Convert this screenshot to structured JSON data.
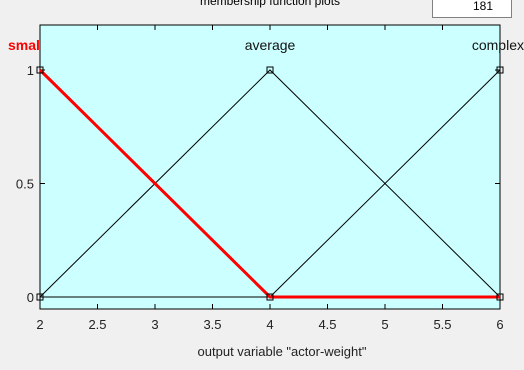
{
  "header": {
    "plot_title": "membership function plots",
    "plot_points": "181"
  },
  "colors": {
    "plot_background": "#ccffff",
    "selected_mf": "#ff0000",
    "mf_line": "#000000"
  },
  "chart_data": {
    "type": "line",
    "xlabel": "output variable \"actor-weight\"",
    "ylabel": "",
    "xlim": [
      2,
      6
    ],
    "ylim": [
      0,
      1
    ],
    "x_ticks": [
      "2",
      "2.5",
      "3",
      "3.5",
      "4",
      "4.5",
      "5",
      "5.5",
      "6"
    ],
    "y_ticks": [
      "0",
      "0.5",
      "1"
    ],
    "series": [
      {
        "name": "smal",
        "selected": true,
        "points": [
          [
            2,
            1
          ],
          [
            4,
            0
          ],
          [
            6,
            0
          ]
        ]
      },
      {
        "name": "average",
        "selected": false,
        "points": [
          [
            2,
            0
          ],
          [
            4,
            1
          ],
          [
            6,
            0
          ]
        ]
      },
      {
        "name": "complex",
        "selected": false,
        "points": [
          [
            2,
            0
          ],
          [
            4,
            0
          ],
          [
            6,
            1
          ]
        ]
      }
    ]
  }
}
